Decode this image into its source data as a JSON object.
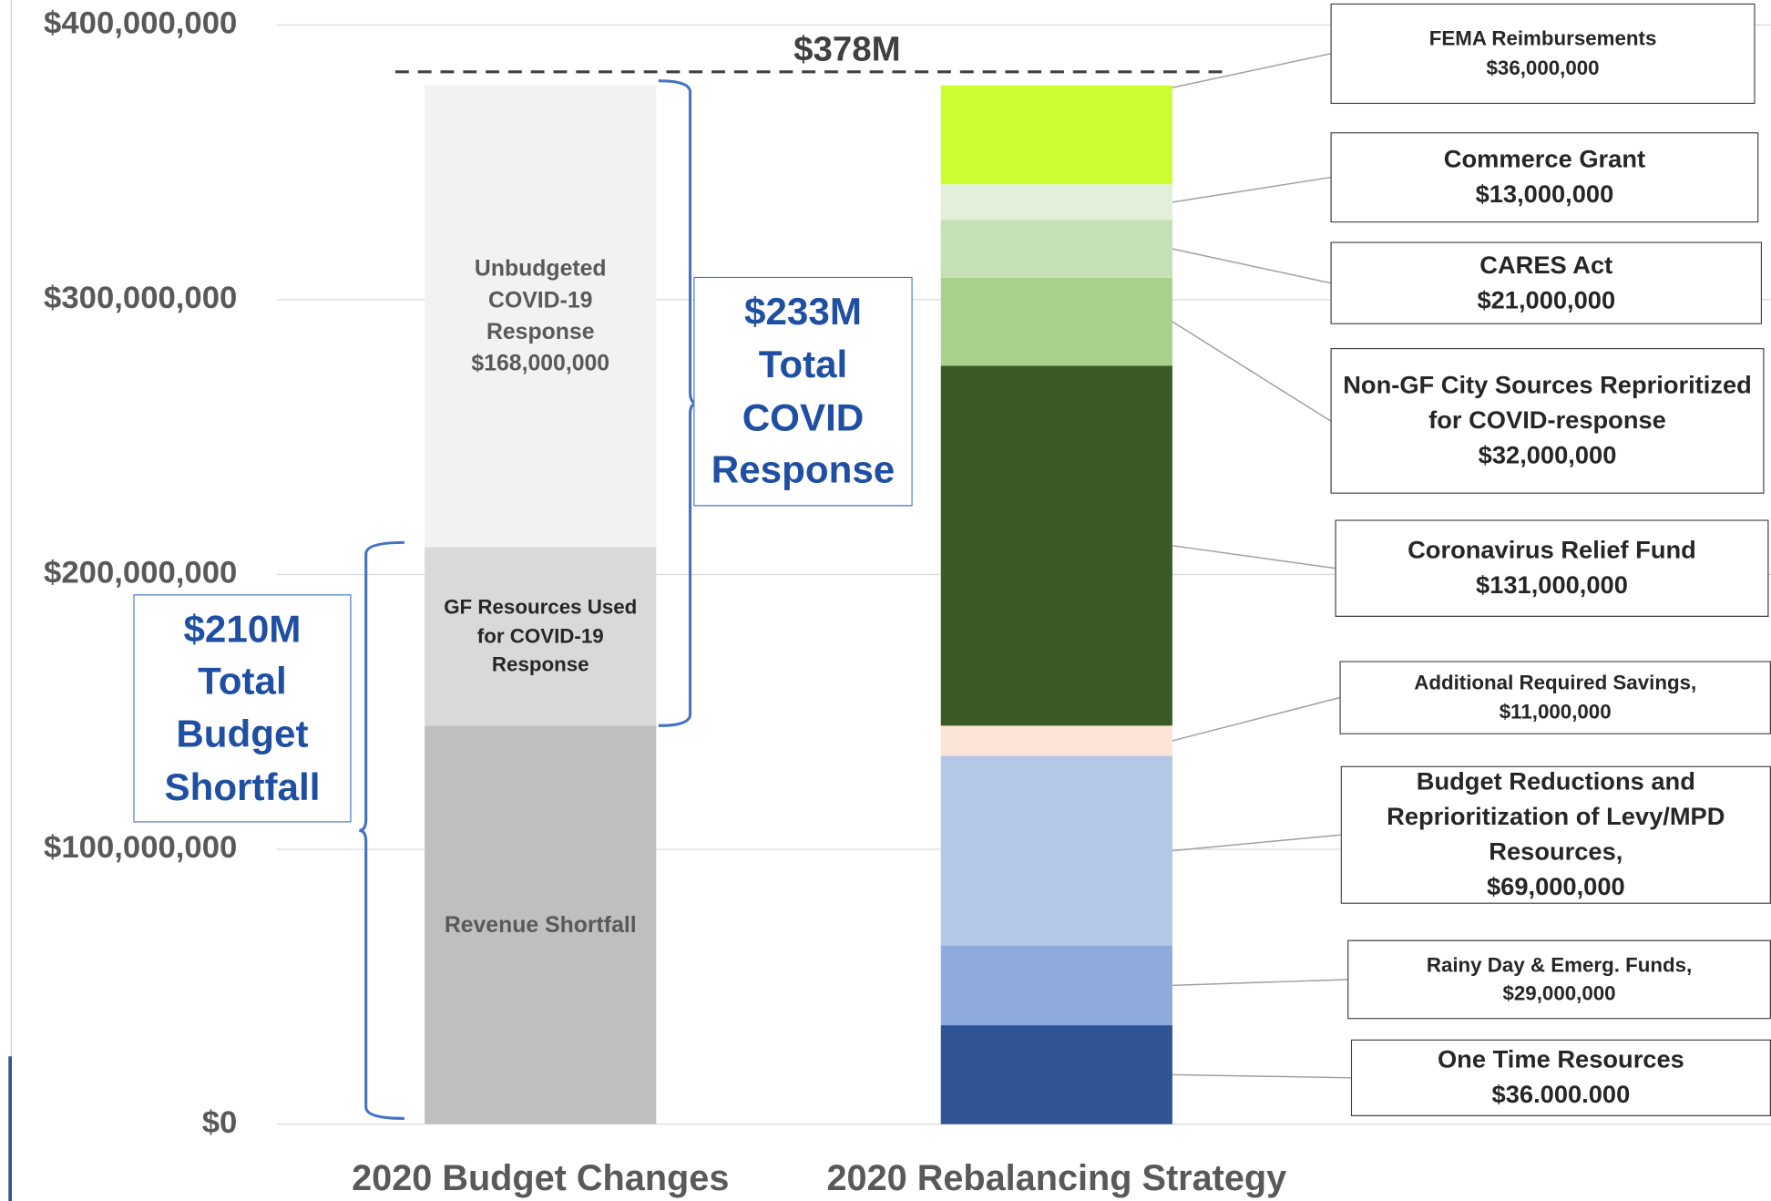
{
  "chart_data": {
    "type": "stacked_bar",
    "categories": [
      "2020 Budget Changes",
      "2020 Rebalancing Strategy"
    ],
    "ylim": [
      0,
      400000000
    ],
    "yticks": [
      {
        "value": 0,
        "label": "$0"
      },
      {
        "value": 100000000,
        "label": "$100,000,000"
      },
      {
        "value": 200000000,
        "label": "$200,000,000"
      },
      {
        "value": 300000000,
        "label": "$300,000,000"
      },
      {
        "value": 400000000,
        "label": "$400,000,000"
      }
    ],
    "grid": true,
    "series": [
      {
        "name": "Revenue Shortfall",
        "color": "#bfbfbf",
        "values": [
          145000000,
          null
        ]
      },
      {
        "name": "GF Resources Used for COVID-19 Response",
        "color": "#d9d9d9",
        "values": [
          65000000,
          null
        ]
      },
      {
        "name": "Unbudgeted COVID-19 Response",
        "color": "#f2f2f2",
        "values": [
          168000000,
          null
        ],
        "value_labels": [
          "$168,000,000",
          null
        ]
      },
      {
        "name": "One Time Resources",
        "color": "#2f5597",
        "values": [
          null,
          36000000
        ],
        "value_labels": [
          null,
          "$36.000.000"
        ]
      },
      {
        "name": "Rainy Day & Emerg. Funds,",
        "color": "#8faadc",
        "values": [
          null,
          29000000
        ],
        "value_labels": [
          null,
          "$29,000,000"
        ]
      },
      {
        "name": "Budget Reductions and Reprioritization of Levy/MPD Resources,",
        "color": "#b4c7e7",
        "values": [
          null,
          69000000
        ],
        "value_labels": [
          null,
          "$69,000,000"
        ]
      },
      {
        "name": "Additional Required Savings,",
        "color": "#fbe5d6",
        "values": [
          null,
          11000000
        ],
        "value_labels": [
          null,
          "$11,000,000"
        ]
      },
      {
        "name": "Coronavirus Relief Fund",
        "color": "#3b5a25",
        "values": [
          null,
          131000000
        ],
        "value_labels": [
          null,
          "$131,000,000"
        ]
      },
      {
        "name": "Non-GF City Sources Reprioritized for COVID-response",
        "color": "#a9d18e",
        "values": [
          null,
          32000000
        ],
        "value_labels": [
          null,
          "$32,000,000"
        ]
      },
      {
        "name": "CARES Act",
        "color": "#c5e0b4",
        "values": [
          null,
          21000000
        ],
        "value_labels": [
          null,
          "$21,000,000"
        ]
      },
      {
        "name": "Commerce Grant",
        "color": "#e2f0d9",
        "values": [
          null,
          13000000
        ],
        "value_labels": [
          null,
          "$13,000,000"
        ]
      },
      {
        "name": "FEMA Reimbursements",
        "color": "#ccff33",
        "values": [
          null,
          36000000
        ],
        "value_labels": [
          null,
          "$36,000,000"
        ]
      }
    ],
    "annotations": [
      "$378M",
      "$233M Total COVID Response",
      "$210M Total Budget Shortfall"
    ]
  }
}
